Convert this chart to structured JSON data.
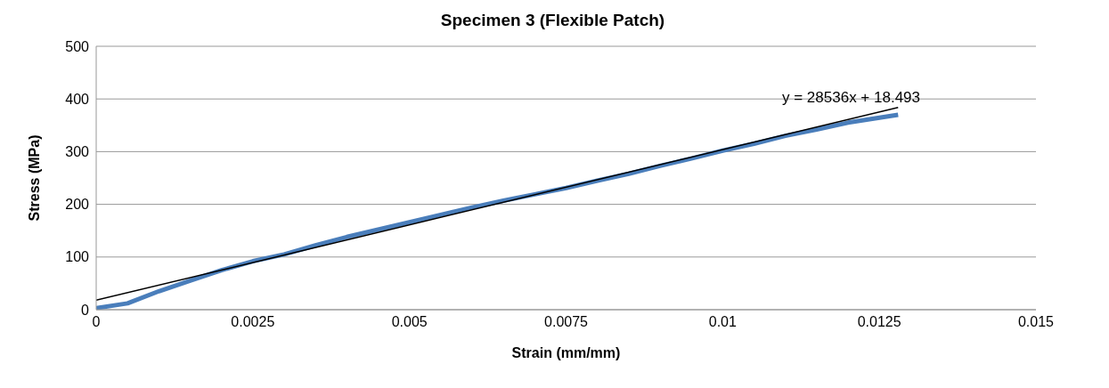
{
  "chart_data": {
    "type": "line",
    "title": "Specimen 3 (Flexible Patch)",
    "xlabel": "Strain (mm/mm)",
    "ylabel": "Stress (MPa)",
    "x": [
      0,
      0.0005,
      0.001,
      0.0015,
      0.002,
      0.0025,
      0.003,
      0.0035,
      0.004,
      0.0045,
      0.005,
      0.0055,
      0.006,
      0.0065,
      0.007,
      0.0075,
      0.008,
      0.0085,
      0.009,
      0.0095,
      0.01,
      0.0105,
      0.011,
      0.0115,
      0.012,
      0.0128
    ],
    "series": [
      {
        "color": "#4a7ebb",
        "values": [
          3,
          12,
          35,
          55,
          75,
          92,
          105,
          122,
          138,
          152,
          166,
          180,
          194,
          207,
          219,
          231,
          245,
          258,
          273,
          287,
          302,
          315,
          330,
          342,
          355,
          370
        ]
      },
      {
        "type": "line",
        "color": "#000000",
        "x": [
          0,
          0.0128
        ],
        "values": [
          18,
          384
        ]
      }
    ],
    "annotations": [
      "y = 28536x + 18.493"
    ],
    "xlim": [
      0,
      0.015
    ],
    "xticks": [
      0,
      0.0025,
      0.005,
      0.0075,
      0.01,
      0.0125,
      0.015
    ],
    "ylim": [
      0,
      500
    ],
    "yticks": [
      0,
      100,
      200,
      300,
      400,
      500
    ],
    "grid": "y",
    "legend": false,
    "marker": "none",
    "line_style": "solid"
  }
}
